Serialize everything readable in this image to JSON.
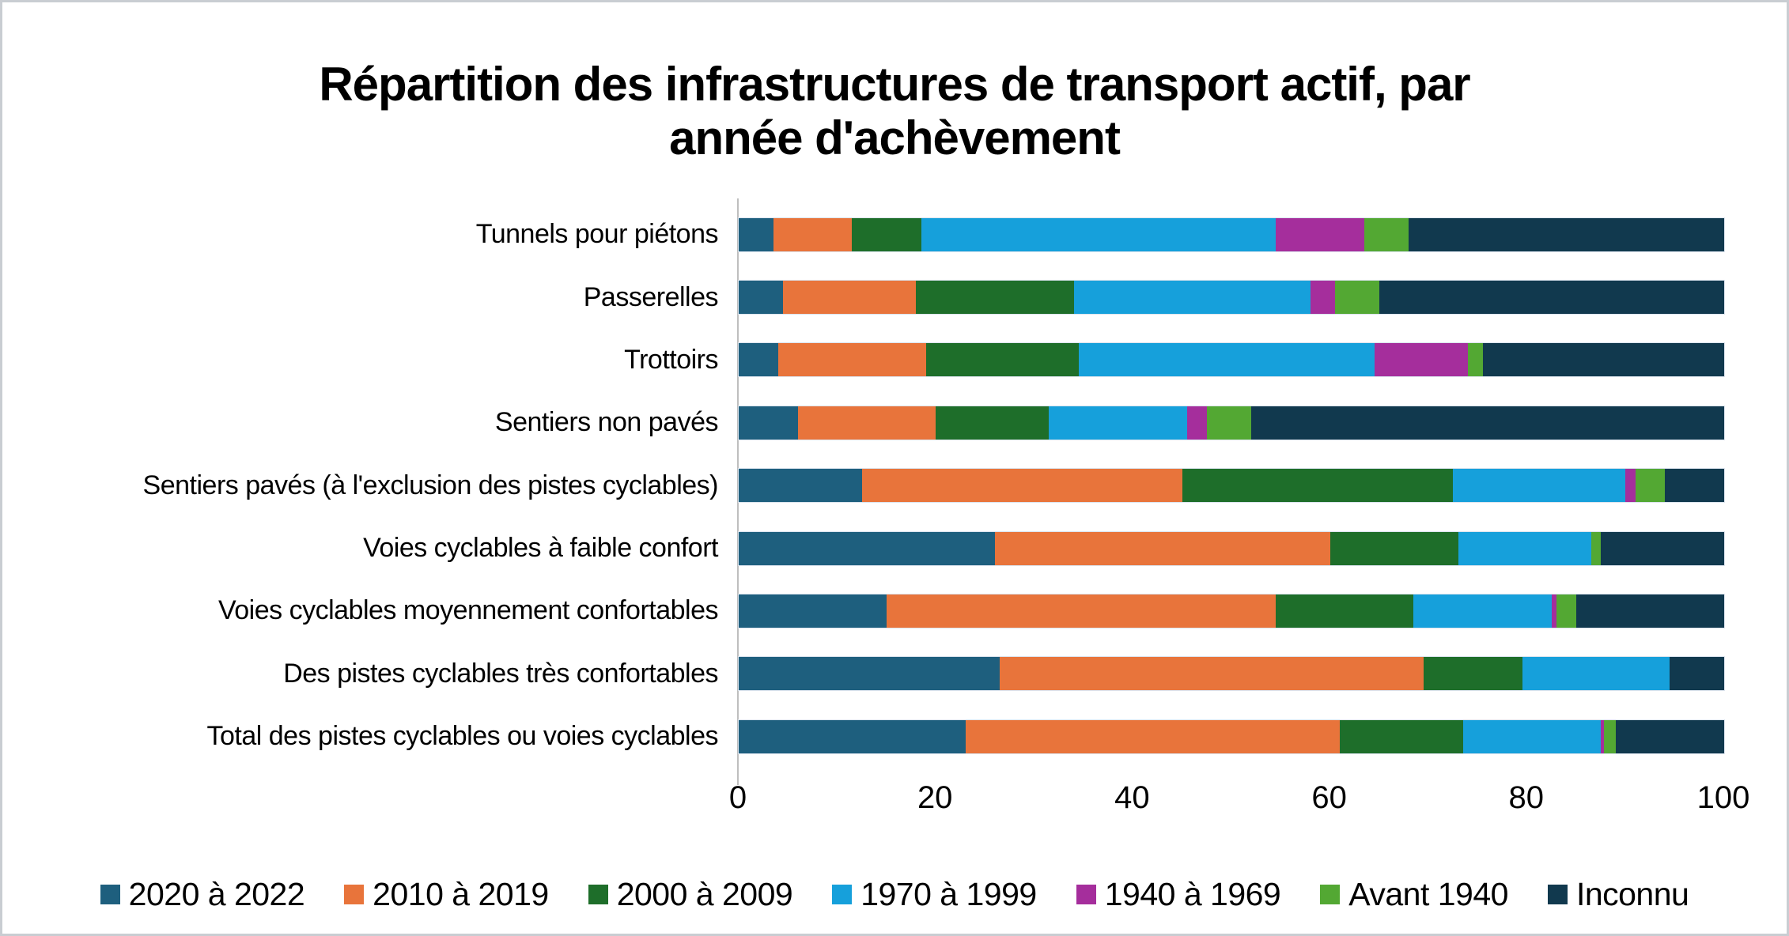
{
  "title": "Répartition des infrastructures de transport actif, par année d'achèvement",
  "title_lines": [
    "Répartition des infrastructures de transport actif, par",
    "année d'achèvement"
  ],
  "chart_data": {
    "type": "bar",
    "orientation": "horizontal",
    "stacked": true,
    "grid": false,
    "legend_position": "bottom",
    "x_axis": {
      "min": 0,
      "max": 100,
      "ticks": [
        0,
        20,
        40,
        60,
        80,
        100
      ]
    },
    "categories": [
      "Tunnels pour piétons",
      "Passerelles",
      "Trottoirs",
      "Sentiers non pavés",
      "Sentiers pavés (à l'exclusion des pistes cyclables)",
      "Voies cyclables à faible confort",
      "Voies cyclables moyennement confortables",
      "Des pistes cyclables très confortables",
      "Total des pistes cyclables ou voies cyclables"
    ],
    "series": [
      {
        "name": "2020 à 2022",
        "color": "#1e5f7e",
        "values": [
          3.5,
          4.5,
          4,
          6,
          12.5,
          26,
          15,
          26.5,
          23
        ]
      },
      {
        "name": "2010 à 2019",
        "color": "#e8743b",
        "values": [
          8,
          13.5,
          15,
          14,
          32.5,
          34,
          39.5,
          43,
          38
        ]
      },
      {
        "name": "2000 à 2009",
        "color": "#1e6e2a",
        "values": [
          7,
          16,
          15.5,
          11.5,
          27.5,
          13,
          14,
          10,
          12.5
        ]
      },
      {
        "name": "1970 à 1999",
        "color": "#16a0db",
        "values": [
          36,
          24,
          30,
          14,
          17.5,
          13.5,
          14,
          15,
          14
        ]
      },
      {
        "name": "1940 à 1969",
        "color": "#a52e9c",
        "values": [
          9,
          2.5,
          9.5,
          2,
          1,
          0,
          0.5,
          0,
          0.3
        ]
      },
      {
        "name": "Avant 1940",
        "color": "#53a833",
        "values": [
          4.5,
          4.5,
          1.5,
          4.5,
          3,
          1,
          2,
          0,
          1.2
        ]
      },
      {
        "name": "Inconnu",
        "color": "#11394e",
        "values": [
          32,
          35,
          24.5,
          48,
          6,
          12.5,
          15,
          5.5,
          11
        ]
      }
    ],
    "colors": {
      "axis_line": "#bfbfbf",
      "background": "#ffffff"
    }
  }
}
